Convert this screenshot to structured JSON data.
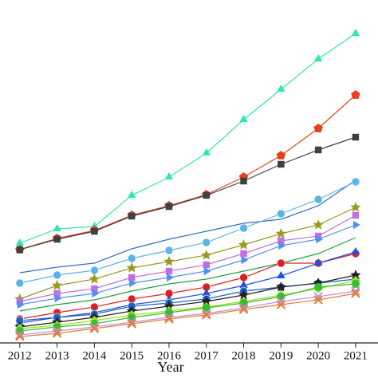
{
  "chart_data": {
    "type": "line",
    "x_label": "Year",
    "x": [
      2012,
      2013,
      2014,
      2015,
      2016,
      2017,
      2018,
      2019,
      2020,
      2021
    ],
    "xlim": [
      2011.47,
      2021.6
    ],
    "xticks": [
      2012,
      2013,
      2014,
      2015,
      2016,
      2017,
      2018,
      2019,
      2020,
      2021
    ],
    "ylim": [
      0,
      430
    ],
    "series": [
      {
        "color": "#2ee8b0",
        "marker": "triangle",
        "values": [
          125,
          143,
          146,
          185,
          208,
          238,
          280,
          318,
          356,
          388
        ]
      },
      {
        "color": "#e8401c",
        "marker": "pentagon",
        "values": [
          117,
          131,
          141,
          160,
          172,
          186,
          208,
          235,
          269,
          311
        ]
      },
      {
        "color": "#404040",
        "marker": "square",
        "values": [
          117,
          130,
          140,
          159,
          171,
          185,
          203,
          224,
          242,
          258
        ]
      },
      {
        "color": "#3070c0",
        "marker": "none",
        "values": [
          88,
          95,
          100,
          118,
          130,
          140,
          150,
          155,
          172,
          204
        ]
      },
      {
        "color": "#5ab4e8",
        "marker": "circle",
        "values": [
          75,
          85,
          91,
          106,
          116,
          126,
          144,
          162,
          180,
          202
        ]
      },
      {
        "color": "#9a9a20",
        "marker": "star",
        "values": [
          55,
          72,
          80,
          94,
          102,
          110,
          123,
          137,
          148,
          170
        ]
      },
      {
        "color": "#c070e0",
        "marker": "square",
        "values": [
          52,
          62,
          68,
          82,
          90,
          98,
          112,
          128,
          134,
          160
        ]
      },
      {
        "color": "#5090f0",
        "marker": "triangle-right",
        "values": [
          48,
          56,
          62,
          75,
          82,
          90,
          104,
          122,
          130,
          148
        ]
      },
      {
        "color": "#20a040",
        "marker": "none",
        "values": [
          40,
          48,
          54,
          65,
          74,
          80,
          90,
          100,
          112,
          132
        ]
      },
      {
        "color": "#e02020",
        "marker": "circle",
        "values": [
          30,
          38,
          45,
          55,
          62,
          70,
          82,
          100,
          100,
          112
        ]
      },
      {
        "color": "#2050e0",
        "marker": "triangle",
        "values": [
          25,
          32,
          38,
          48,
          54,
          62,
          72,
          84,
          100,
          114
        ]
      },
      {
        "color": "#2060c0",
        "marker": "circle",
        "values": [
          28,
          32,
          36,
          46,
          50,
          55,
          65,
          70,
          75,
          80
        ]
      },
      {
        "color": "#202020",
        "marker": "star",
        "values": [
          20,
          26,
          32,
          40,
          46,
          52,
          60,
          70,
          75,
          85
        ]
      },
      {
        "color": "#a0e020",
        "marker": "diamond",
        "values": [
          18,
          22,
          28,
          35,
          40,
          45,
          52,
          60,
          68,
          78
        ]
      },
      {
        "color": "#30c030",
        "marker": "hexagon",
        "values": [
          15,
          20,
          24,
          32,
          38,
          44,
          50,
          58,
          70,
          74
        ]
      },
      {
        "color": "#c090e0",
        "marker": "x",
        "values": [
          10,
          15,
          20,
          26,
          32,
          37,
          44,
          52,
          58,
          65
        ]
      },
      {
        "color": "#e08030",
        "marker": "x",
        "values": [
          8,
          12,
          18,
          24,
          30,
          35,
          42,
          48,
          54,
          62
        ]
      }
    ]
  }
}
